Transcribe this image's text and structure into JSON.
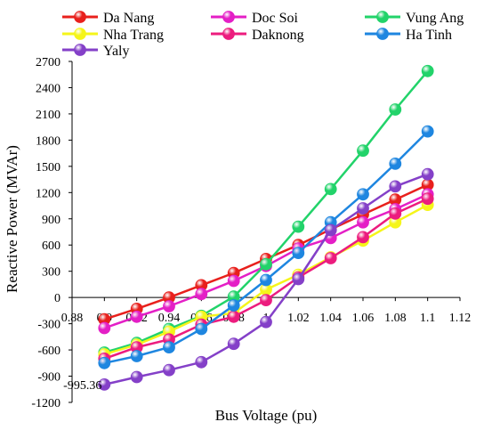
{
  "chart_data": {
    "type": "line",
    "xlabel": "Bus Voltage (pu)",
    "ylabel": "Reactive Power (MVAr)",
    "xlim": [
      0.88,
      1.12
    ],
    "ylim": [
      -1200,
      2700
    ],
    "x_ticks": [
      0.88,
      0.9,
      0.92,
      0.94,
      0.96,
      0.98,
      1,
      1.02,
      1.04,
      1.06,
      1.08,
      1.1,
      1.12
    ],
    "x_tick_labels": [
      "0.88",
      "0.9",
      "0.92",
      "0.94",
      "0.96",
      "0.98",
      "1",
      "1.02",
      "1.04",
      "1.06",
      "1.08",
      "1.1",
      "1.12"
    ],
    "y_ticks": [
      2700,
      2400,
      2100,
      1800,
      1500,
      1200,
      900,
      600,
      300,
      0,
      -300,
      -600,
      -900,
      -1200
    ],
    "y_tick_labels": [
      "2700",
      "2400",
      "2100",
      "1800",
      "1500",
      "1200",
      "900",
      "600",
      "300",
      "0",
      "-300",
      "-600",
      "-900",
      "-1200"
    ],
    "annotations": [
      {
        "text": "-995.36",
        "x": 0.9,
        "y": -995.36
      }
    ],
    "legend_position": "top",
    "grid": false,
    "x": [
      0.9,
      0.92,
      0.94,
      0.96,
      0.98,
      1.0,
      1.02,
      1.04,
      1.06,
      1.08,
      1.1
    ],
    "series": [
      {
        "name": "Da Nang",
        "color": "#e8201c",
        "values": [
          -250,
          -130,
          0,
          140,
          280,
          440,
          600,
          780,
          950,
          1120,
          1290
        ]
      },
      {
        "name": "Doc Soi",
        "color": "#e41fc6",
        "values": [
          -350,
          -220,
          -100,
          40,
          190,
          360,
          560,
          680,
          860,
          1010,
          1180
        ]
      },
      {
        "name": "Vung Ang",
        "color": "#22d36a",
        "values": [
          -630,
          -520,
          -360,
          -210,
          10,
          380,
          810,
          1240,
          1680,
          2150,
          2590
        ]
      },
      {
        "name": "Nha Trang",
        "color": "#f5f51a",
        "values": [
          -650,
          -540,
          -390,
          -220,
          -180,
          90,
          260,
          460,
          650,
          860,
          1060
        ]
      },
      {
        "name": "Daknong",
        "color": "#ec1c7e",
        "values": [
          -700,
          -570,
          -480,
          -310,
          -220,
          -30,
          230,
          450,
          690,
          960,
          1130
        ]
      },
      {
        "name": "Ha Tinh",
        "color": "#1e86e0",
        "values": [
          -750,
          -670,
          -570,
          -360,
          -90,
          200,
          510,
          860,
          1180,
          1530,
          1900
        ]
      },
      {
        "name": "Yaly",
        "color": "#8440c8",
        "values": [
          -995.36,
          -910,
          -830,
          -740,
          -530,
          -280,
          210,
          770,
          1020,
          1270,
          1410
        ]
      }
    ]
  }
}
